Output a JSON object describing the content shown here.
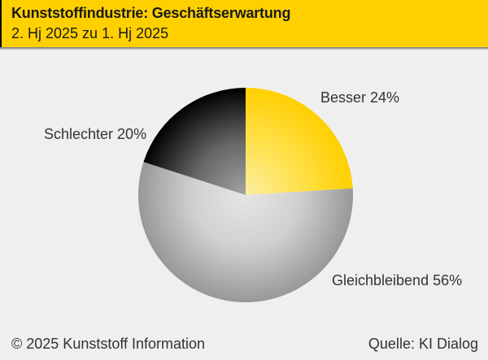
{
  "header": {
    "title": "Kunststoffindustrie: Geschäftserwartung",
    "subtitle": "2. Hj 2025 zu 1. Hj 2025",
    "background": "#FFD000",
    "text_color": "#1A1A1A"
  },
  "chart_data": {
    "type": "pie",
    "title": "Kunststoffindustrie: Geschäftserwartung",
    "subtitle": "2. Hj 2025 zu 1. Hj 2025",
    "unit": "%",
    "start_angle_deg": 0,
    "direction": "clockwise",
    "legend_position": "labels-outside",
    "slices": [
      {
        "key": "besser",
        "label": "Besser",
        "value": 24,
        "display": "Besser 24%",
        "color_inner": "#FBEFA2",
        "color_mid": "#FFE14D",
        "color_outer": "#FFCF00"
      },
      {
        "key": "gleichbleibend",
        "label": "Gleichbleibend",
        "value": 56,
        "display": "Gleichbleibend 56%",
        "color_inner": "#E6E6E6",
        "color_mid": "#D0D0D0",
        "color_outer": "#989898"
      },
      {
        "key": "schlechter",
        "label": "Schlechter",
        "value": 20,
        "display": "Schlechter 20%",
        "color_inner": "#A4A4A4",
        "color_mid": "#666666",
        "color_outer": "#000000"
      }
    ]
  },
  "footer": {
    "copyright": "© 2025 Kunststoff Information",
    "source": "Quelle: KI Dialog"
  },
  "colors": {
    "background": "#EFEFEF",
    "header_yellow": "#FFD000",
    "label_text": "#333333"
  }
}
